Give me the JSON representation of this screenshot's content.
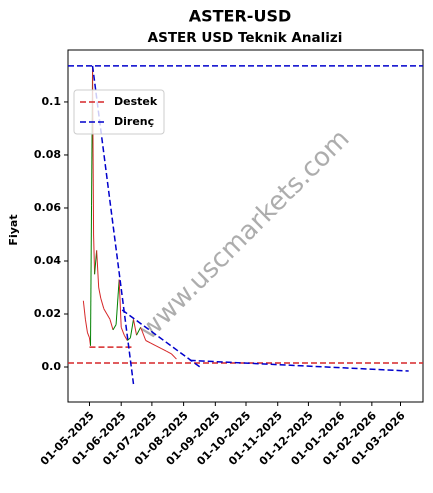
{
  "chart_data": {
    "type": "price-line",
    "title": "ASTER-USD",
    "subtitle": "ASTER USD Teknik Analizi",
    "y_label": "Fiyat",
    "watermark": "www.uscmarkets.com",
    "xlim": [
      "2025-04-10",
      "2026-03-23"
    ],
    "ylim": [
      -0.0132,
      0.1196
    ],
    "yticks": [
      {
        "value": 0,
        "label": "0.0"
      },
      0.02,
      0.04,
      0.06,
      0.08,
      0.1
    ],
    "xticks": [
      {
        "value": "2025-05-01",
        "label": "01-05-2025"
      },
      {
        "value": "2025-06-01",
        "label": "01-06-2025"
      },
      {
        "value": "2025-07-01",
        "label": "01-07-2025"
      },
      {
        "value": "2025-08-01",
        "label": "01-08-2025"
      },
      {
        "value": "2025-09-01",
        "label": "01-09-2025"
      },
      {
        "value": "2025-10-01",
        "label": "01-10-2025"
      },
      {
        "value": "2025-11-01",
        "label": "01-11-2025"
      },
      {
        "value": "2025-12-01",
        "label": "01-12-2025"
      },
      {
        "value": "2026-01-01",
        "label": "01-01-2026"
      },
      {
        "value": "2026-02-01",
        "label": "01-02-2026"
      },
      {
        "value": "2026-03-01",
        "label": "01-03-2026"
      }
    ],
    "up_color": "#008000",
    "down_color": "#d62728",
    "price": {
      "x": [
        "2025-04-25",
        "2025-04-27",
        "2025-04-29",
        "2025-05-01",
        "2025-05-02",
        "2025-05-03",
        "2025-05-04",
        "2025-05-05",
        "2025-05-06",
        "2025-05-08",
        "2025-05-10",
        "2025-05-12",
        "2025-05-15",
        "2025-05-18",
        "2025-05-21",
        "2025-05-24",
        "2025-05-27",
        "2025-05-30",
        "2025-06-01",
        "2025-06-04",
        "2025-06-07",
        "2025-06-10",
        "2025-06-13",
        "2025-06-16",
        "2025-06-20",
        "2025-06-25",
        "2025-06-30",
        "2025-07-05",
        "2025-07-10",
        "2025-07-15",
        "2025-07-20",
        "2025-07-25"
      ],
      "values": [
        0.025,
        0.018,
        0.013,
        0.011,
        0.008,
        0.061,
        0.113,
        0.05,
        0.035,
        0.044,
        0.03,
        0.026,
        0.022,
        0.02,
        0.018,
        0.014,
        0.016,
        0.033,
        0.015,
        0.012,
        0.01,
        0.011,
        0.018,
        0.012,
        0.015,
        0.01,
        0.009,
        0.008,
        0.007,
        0.006,
        0.005,
        0.003
      ]
    },
    "levels": [
      {
        "name": "Destek",
        "color": "#d62728",
        "hline": 0.0015,
        "segments": [
          {
            "x": [
              "2025-05-01",
              "2025-06-14"
            ],
            "values": [
              0.0075,
              0.0075
            ]
          }
        ]
      },
      {
        "name": "Direnç",
        "color": "#0000cc",
        "hline": 0.1136,
        "segments": [
          {
            "x": [
              "2025-05-04",
              "2025-06-13"
            ],
            "values": [
              0.1136,
              -0.0064
            ]
          },
          {
            "x": [
              "2025-06-02",
              "2025-08-17"
            ],
            "values": [
              0.0215,
              0.0
            ]
          },
          {
            "x": [
              "2025-08-07",
              "2026-03-09"
            ],
            "values": [
              0.0025,
              -0.0015
            ]
          }
        ]
      }
    ],
    "legend": "upper left"
  }
}
